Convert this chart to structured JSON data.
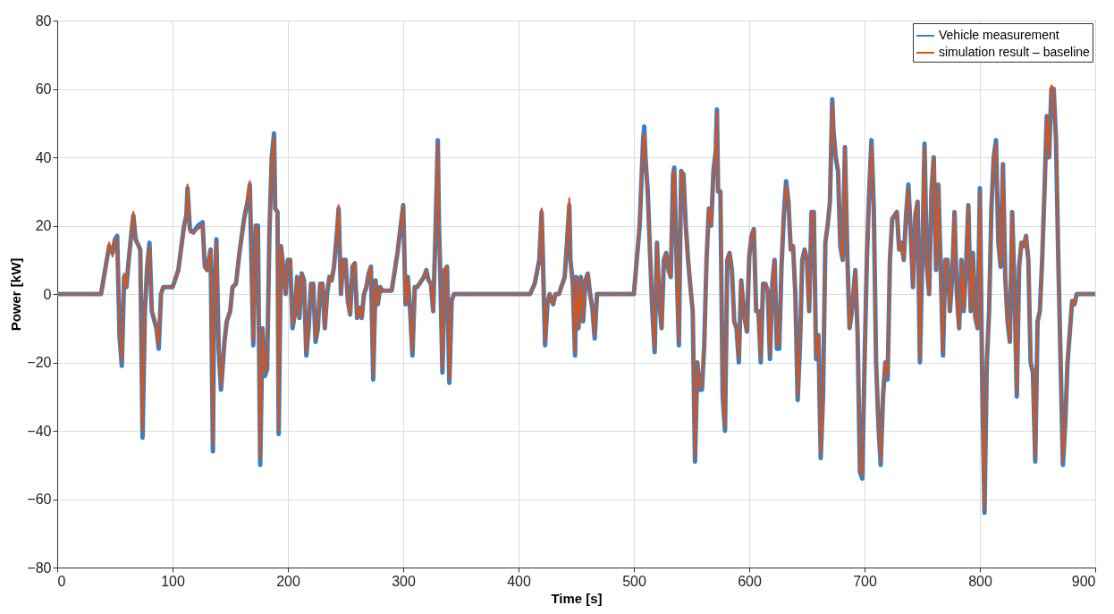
{
  "chart_data": {
    "type": "line",
    "xlabel": "Time [s]",
    "ylabel": "Power [kW]",
    "xlim": [
      0,
      900
    ],
    "xticks": [
      0,
      100,
      200,
      300,
      400,
      500,
      600,
      700,
      800,
      900
    ],
    "ylim": [
      -80,
      80
    ],
    "yticks": [
      -80,
      -60,
      -40,
      -20,
      0,
      20,
      40,
      60,
      80
    ],
    "grid": true,
    "legend": "top right",
    "line_style": "solid",
    "marker": "none",
    "x": [
      0,
      38,
      42,
      45,
      48,
      50,
      52,
      54,
      56,
      58,
      60,
      62,
      65,
      66,
      68,
      72,
      74,
      76,
      78,
      80,
      82,
      86,
      88,
      90,
      92,
      100,
      105,
      110,
      112,
      113,
      115,
      118,
      122,
      126,
      128,
      130,
      133,
      135,
      136,
      138,
      140,
      142,
      145,
      147,
      150,
      152,
      155,
      158,
      162,
      165,
      167,
      170,
      172,
      174,
      176,
      178,
      180,
      182,
      184,
      186,
      188,
      189,
      191,
      192,
      194,
      196,
      198,
      200,
      202,
      204,
      206,
      208,
      210,
      212,
      214,
      216,
      218,
      220,
      222,
      224,
      226,
      228,
      230,
      232,
      234,
      236,
      238,
      240,
      243,
      244,
      246,
      248,
      250,
      252,
      254,
      256,
      258,
      260,
      262,
      264,
      266,
      268,
      270,
      272,
      274,
      276,
      278,
      280,
      282,
      285,
      290,
      295,
      300,
      302,
      304,
      306,
      308,
      310,
      312,
      314,
      318,
      320,
      322,
      324,
      326,
      328,
      330,
      331,
      332,
      334,
      336,
      338,
      340,
      342,
      344,
      350,
      410,
      414,
      418,
      420,
      421,
      423,
      425,
      427,
      430,
      432,
      435,
      440,
      442,
      444,
      445,
      447,
      449,
      450,
      452,
      454,
      456,
      458,
      460,
      462,
      464,
      466,
      468,
      470,
      500,
      505,
      508,
      509,
      510,
      512,
      514,
      516,
      518,
      520,
      522,
      524,
      526,
      528,
      530,
      532,
      534,
      535,
      537,
      539,
      541,
      543,
      545,
      547,
      549,
      551,
      553,
      555,
      557,
      559,
      561,
      563,
      565,
      567,
      569,
      571,
      572,
      573,
      575,
      577,
      579,
      581,
      583,
      585,
      587,
      589,
      591,
      593,
      596,
      598,
      600,
      602,
      604,
      606,
      608,
      610,
      612,
      614,
      616,
      618,
      620,
      622,
      624,
      626,
      628,
      630,
      632,
      634,
      636,
      638,
      640,
      642,
      644,
      646,
      648,
      650,
      652,
      654,
      656,
      658,
      660,
      662,
      664,
      666,
      668,
      670,
      672,
      673,
      675,
      677,
      679,
      681,
      683,
      685,
      687,
      689,
      692,
      694,
      696,
      698,
      700,
      702,
      704,
      706,
      708,
      710,
      712,
      714,
      716,
      718,
      720,
      722,
      724,
      726,
      728,
      730,
      732,
      734,
      736,
      738,
      740,
      742,
      744,
      746,
      748,
      750,
      752,
      754,
      756,
      758,
      760,
      762,
      764,
      766,
      768,
      770,
      772,
      774,
      776,
      778,
      780,
      782,
      784,
      786,
      788,
      790,
      792,
      794,
      796,
      798,
      800,
      802,
      804,
      806,
      808,
      810,
      812,
      814,
      816,
      818,
      820,
      822,
      824,
      826,
      828,
      830,
      832,
      834,
      836,
      838,
      840,
      842,
      844,
      846,
      848,
      850,
      852,
      854,
      856,
      858,
      860,
      862,
      864,
      866,
      868,
      870,
      872,
      874,
      876,
      880,
      882,
      884,
      900
    ],
    "series": [
      {
        "name": "Vehicle measurement",
        "color": "#3a7fc4",
        "values": [
          0,
          0,
          8,
          14,
          12,
          16,
          17,
          -12,
          -21,
          5,
          2,
          10,
          20,
          23,
          16,
          13,
          -42,
          -5,
          8,
          15,
          -5,
          -10,
          -16,
          0,
          2,
          2,
          7,
          20,
          23,
          31,
          19,
          18,
          20,
          21,
          8,
          7,
          13,
          -46,
          -3,
          16,
          -16,
          -28,
          -14,
          -8,
          -5,
          2,
          3,
          12,
          22,
          27,
          32,
          -15,
          20,
          20,
          -50,
          -10,
          -24,
          -22,
          18,
          40,
          47,
          25,
          24,
          -41,
          14,
          8,
          0,
          10,
          10,
          -10,
          -6,
          5,
          -7,
          6,
          4,
          -18,
          -10,
          3,
          3,
          -14,
          -10,
          3,
          3,
          -10,
          0,
          5,
          4,
          8,
          20,
          25,
          0,
          10,
          10,
          -2,
          -6,
          8,
          9,
          -7,
          -4,
          -7,
          0,
          2,
          6,
          8,
          -25,
          4,
          -3,
          2,
          1,
          1,
          1,
          12,
          26,
          -3,
          5,
          -5,
          -18,
          2,
          2,
          3,
          5,
          7,
          4,
          3,
          -5,
          18,
          45,
          20,
          8,
          -23,
          7,
          8,
          -26,
          -2,
          0,
          0,
          0,
          3,
          10,
          24,
          12,
          -15,
          -3,
          0,
          -3,
          0,
          0,
          5,
          15,
          26,
          10,
          3,
          -18,
          5,
          -10,
          5,
          -8,
          4,
          6,
          0,
          -4,
          -13,
          0,
          0,
          0,
          20,
          45,
          49,
          40,
          30,
          12,
          -5,
          -17,
          15,
          -2,
          -10,
          10,
          12,
          7,
          5,
          35,
          37,
          10,
          -15,
          36,
          35,
          20,
          10,
          2,
          -5,
          -49,
          -20,
          -28,
          -28,
          -15,
          10,
          25,
          20,
          36,
          42,
          54,
          30,
          30,
          -30,
          -40,
          10,
          12,
          7,
          -8,
          -10,
          -20,
          4,
          -7,
          -11,
          11,
          17,
          19,
          -5,
          -5,
          -20,
          3,
          3,
          1,
          -19,
          3,
          10,
          -16,
          -16,
          8,
          23,
          33,
          27,
          13,
          14,
          0,
          -31,
          -15,
          10,
          13,
          10,
          -5,
          24,
          24,
          -19,
          -12,
          -48,
          -30,
          15,
          20,
          27,
          57,
          48,
          40,
          36,
          14,
          10,
          43,
          12,
          -10,
          -5,
          7,
          -12,
          -52,
          -54,
          -20,
          10,
          30,
          45,
          25,
          -20,
          -38,
          -50,
          -30,
          -20,
          -25,
          10,
          22,
          23,
          24,
          13,
          15,
          10,
          23,
          32,
          18,
          2,
          23,
          27,
          -20,
          10,
          44,
          8,
          0,
          30,
          40,
          7,
          32,
          8,
          -18,
          10,
          10,
          -5,
          5,
          24,
          0,
          -10,
          10,
          -5,
          8,
          26,
          -5,
          12,
          -7,
          -10,
          31,
          -25,
          -64,
          -20,
          -5,
          25,
          40,
          45,
          15,
          8,
          38,
          5,
          -8,
          -14,
          24,
          2,
          -30,
          8,
          15,
          14,
          17,
          10,
          -20,
          -23,
          -49,
          -8,
          -5,
          10,
          30,
          52,
          40,
          60,
          60,
          45,
          10,
          -20,
          -50,
          -38,
          -20,
          -2,
          -3,
          0,
          0
        ]
      },
      {
        "name": "simulation result – baseline",
        "color": "#d95319",
        "values": [
          0,
          0,
          8,
          15,
          11,
          16,
          16,
          -11,
          -20,
          6,
          2,
          10,
          21,
          24,
          16,
          13,
          -40,
          -5,
          8,
          14,
          -4,
          -10,
          -15,
          0,
          2,
          2,
          7,
          20,
          23,
          32,
          18,
          18,
          19,
          20,
          8,
          7,
          13,
          -44,
          -3,
          15,
          -15,
          -27,
          -14,
          -8,
          -5,
          2,
          3,
          12,
          22,
          28,
          33,
          -14,
          20,
          19,
          -48,
          -10,
          -23,
          -21,
          18,
          40,
          46,
          25,
          24,
          -40,
          14,
          8,
          0,
          10,
          10,
          -9,
          -6,
          5,
          -7,
          6,
          4,
          -17,
          -10,
          3,
          3,
          -13,
          -10,
          3,
          3,
          -10,
          0,
          5,
          4,
          8,
          20,
          26,
          0,
          10,
          10,
          -2,
          -6,
          8,
          9,
          -7,
          -4,
          -7,
          0,
          2,
          6,
          8,
          -24,
          4,
          -3,
          2,
          1,
          1,
          1,
          12,
          26,
          -3,
          5,
          -5,
          -17,
          2,
          2,
          3,
          5,
          7,
          4,
          3,
          -5,
          18,
          44,
          20,
          8,
          -22,
          7,
          8,
          -25,
          -2,
          0,
          0,
          0,
          3,
          10,
          25,
          12,
          -14,
          -3,
          0,
          -3,
          0,
          0,
          5,
          15,
          28,
          10,
          3,
          -17,
          5,
          -10,
          5,
          -8,
          4,
          6,
          0,
          -4,
          -12,
          0,
          0,
          0,
          20,
          45,
          47,
          41,
          30,
          12,
          -5,
          -16,
          15,
          -2,
          -10,
          10,
          12,
          7,
          5,
          35,
          36,
          10,
          -14,
          36,
          35,
          20,
          10,
          2,
          -5,
          -48,
          -20,
          -27,
          -27,
          -15,
          10,
          25,
          20,
          36,
          42,
          53,
          30,
          30,
          -29,
          -39,
          10,
          12,
          7,
          -8,
          -10,
          -19,
          4,
          -7,
          -11,
          11,
          17,
          19,
          -5,
          -5,
          -19,
          3,
          3,
          1,
          -18,
          3,
          10,
          -15,
          -15,
          8,
          23,
          32,
          27,
          13,
          14,
          0,
          -30,
          -15,
          10,
          13,
          10,
          -5,
          24,
          24,
          -18,
          -12,
          -47,
          -30,
          15,
          20,
          27,
          56,
          48,
          40,
          36,
          14,
          10,
          43,
          12,
          -10,
          -5,
          7,
          -12,
          -51,
          -53,
          -20,
          10,
          30,
          44,
          25,
          -20,
          -37,
          -49,
          -30,
          -20,
          -24,
          10,
          22,
          23,
          24,
          13,
          15,
          10,
          23,
          31,
          18,
          2,
          23,
          27,
          -19,
          10,
          43,
          8,
          0,
          30,
          40,
          7,
          32,
          8,
          -17,
          10,
          10,
          -5,
          5,
          24,
          0,
          -10,
          10,
          -5,
          8,
          26,
          -5,
          12,
          -7,
          -10,
          30,
          -24,
          -63,
          -20,
          -5,
          25,
          40,
          44,
          15,
          8,
          38,
          5,
          -8,
          -14,
          24,
          2,
          -29,
          8,
          15,
          14,
          17,
          10,
          -19,
          -22,
          -48,
          -8,
          -5,
          10,
          30,
          52,
          40,
          61,
          60,
          45,
          10,
          -20,
          -49,
          -37,
          -20,
          -2,
          -3,
          0,
          0
        ]
      }
    ]
  }
}
